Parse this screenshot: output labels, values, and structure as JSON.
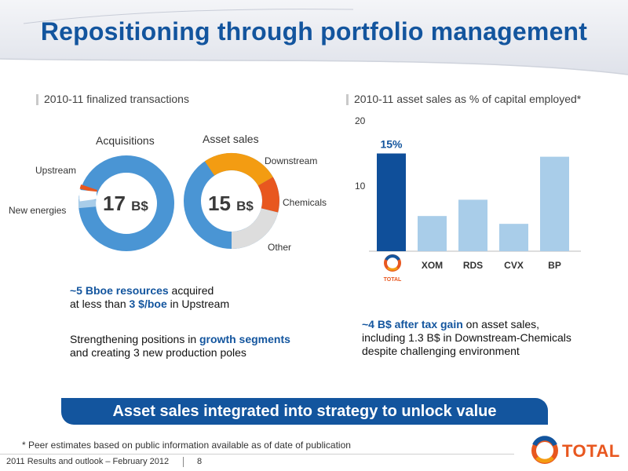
{
  "title": "Repositioning through portfolio management",
  "left": {
    "section_title": "2010-11 finalized transactions",
    "acquisitions": {
      "header": "Acquisitions",
      "total_value": "17",
      "unit": "B$",
      "labels": [
        "Upstream",
        "New energies"
      ]
    },
    "asset_sales": {
      "header": "Asset sales",
      "total_value": "15",
      "unit": "B$",
      "labels": [
        "Downstream",
        "Chemicals",
        "Other"
      ]
    },
    "text1": {
      "prefix": "~5 Bboe resources",
      "middle": " acquired",
      "line2_a": "at less than ",
      "line2_b": "3 $/boe",
      "line2_c": " in Upstream"
    },
    "text2": {
      "line1_a": "Strengthening positions in ",
      "line1_b": "growth segments",
      "line2": "and creating 3 new production poles"
    }
  },
  "right": {
    "section_title": "2010-11 asset sales as % of capital employed*",
    "chart_data": {
      "type": "bar",
      "categories": [
        "TOTAL",
        "XOM",
        "RDS",
        "CVX",
        "BP"
      ],
      "values": [
        15,
        5.4,
        7.9,
        4.2,
        14.5
      ],
      "data_labels": [
        "15%",
        "",
        "",
        "",
        ""
      ],
      "ylim": [
        0,
        20
      ],
      "y_ticks": [
        "20",
        "10"
      ],
      "colors": [
        "#0f4f9a",
        "#a9cde9",
        "#a9cde9",
        "#a9cde9",
        "#a9cde9"
      ]
    },
    "text1": {
      "a": "~4 B$ after tax gain",
      "b": " on asset sales,"
    },
    "text2": "including 1.3 B$ in Downstream-Chemicals",
    "text3": "despite challenging environment"
  },
  "banner": "Asset sales integrated into strategy to unlock value",
  "footnote": "* Peer estimates based on public information available as of date of publication",
  "footer": {
    "left": "2011 Results and outlook – February 2012",
    "page": "8"
  },
  "brand": {
    "name": "TOTAL",
    "small_logo_text": "TOTAL"
  },
  "colors": {
    "accent": "#13559e",
    "donut_blue": "#4a95d4",
    "donut_light": "#a9cde9",
    "downstream": "#f39c12",
    "chemicals": "#e8571f",
    "other": "#dddddd"
  }
}
